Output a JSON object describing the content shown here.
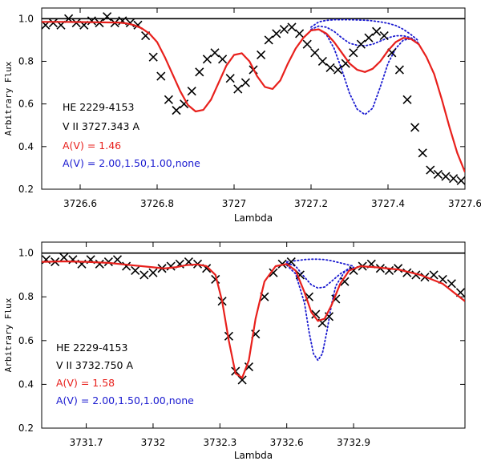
{
  "chart_data": [
    {
      "type": "line",
      "xlabel": "Lambda",
      "ylabel": "Arbitrary Flux",
      "xlim": [
        3726.5,
        3727.6
      ],
      "ylim": [
        0.2,
        1.05
      ],
      "xticks": [
        3726.6,
        3726.8,
        3727,
        3727.2,
        3727.4,
        3727.6
      ],
      "xtick_labels": [
        "3726.6",
        "3726.8",
        "3727",
        "3727.2",
        "3727.4",
        "3727.6"
      ],
      "yticks": [
        0.2,
        0.4,
        0.6,
        0.8,
        1.0
      ],
      "ytick_labels": [
        "0.2",
        "0.4",
        "0.6",
        "0.8",
        "1.0"
      ],
      "continuum": 1.0,
      "annotations": [
        {
          "text": "HE 2229-4153",
          "color": "#000000"
        },
        {
          "text": "V II 3727.343 A",
          "color": "#000000"
        },
        {
          "text": "A(V) = 1.46",
          "color": "#e8201c"
        },
        {
          "text": "A(V) = 2.00,1.50,1.00,none",
          "color": "#1a1ad0"
        }
      ],
      "observed": {
        "x": [
          3726.51,
          3726.53,
          3726.55,
          3726.57,
          3726.59,
          3726.61,
          3726.63,
          3726.65,
          3726.67,
          3726.69,
          3726.71,
          3726.73,
          3726.75,
          3726.77,
          3726.79,
          3726.81,
          3726.83,
          3726.85,
          3726.87,
          3726.89,
          3726.91,
          3726.93,
          3726.95,
          3726.97,
          3726.99,
          3727.01,
          3727.03,
          3727.05,
          3727.07,
          3727.09,
          3727.11,
          3727.13,
          3727.15,
          3727.17,
          3727.19,
          3727.21,
          3727.23,
          3727.25,
          3727.27,
          3727.29,
          3727.31,
          3727.33,
          3727.35,
          3727.37,
          3727.39,
          3727.41,
          3727.43,
          3727.45,
          3727.47,
          3727.49,
          3727.51,
          3727.53,
          3727.55,
          3727.57,
          3727.59
        ],
        "y": [
          0.97,
          0.98,
          0.97,
          1.0,
          0.98,
          0.97,
          0.99,
          0.98,
          1.01,
          0.98,
          0.99,
          0.98,
          0.97,
          0.92,
          0.82,
          0.73,
          0.62,
          0.57,
          0.6,
          0.66,
          0.75,
          0.81,
          0.84,
          0.81,
          0.72,
          0.67,
          0.7,
          0.76,
          0.83,
          0.9,
          0.93,
          0.95,
          0.96,
          0.93,
          0.88,
          0.84,
          0.8,
          0.77,
          0.76,
          0.79,
          0.84,
          0.88,
          0.91,
          0.94,
          0.92,
          0.84,
          0.76,
          0.62,
          0.49,
          0.37,
          0.29,
          0.27,
          0.26,
          0.25,
          0.24
        ]
      },
      "fit": {
        "name": "A(V) = 1.46",
        "color": "#e8201c",
        "x": [
          3726.5,
          3726.55,
          3726.6,
          3726.65,
          3726.7,
          3726.72,
          3726.74,
          3726.76,
          3726.78,
          3726.8,
          3726.82,
          3726.84,
          3726.86,
          3726.88,
          3726.9,
          3726.92,
          3726.94,
          3726.96,
          3726.98,
          3727.0,
          3727.02,
          3727.04,
          3727.06,
          3727.08,
          3727.1,
          3727.12,
          3727.14,
          3727.16,
          3727.18,
          3727.2,
          3727.22,
          3727.24,
          3727.26,
          3727.28,
          3727.3,
          3727.32,
          3727.34,
          3727.36,
          3727.38,
          3727.4,
          3727.42,
          3727.44,
          3727.46,
          3727.48,
          3727.5,
          3727.52,
          3727.54,
          3727.56,
          3727.58,
          3727.6
        ],
        "y": [
          0.985,
          0.985,
          0.984,
          0.983,
          0.982,
          0.978,
          0.97,
          0.955,
          0.93,
          0.89,
          0.82,
          0.74,
          0.66,
          0.595,
          0.565,
          0.572,
          0.62,
          0.7,
          0.78,
          0.83,
          0.838,
          0.8,
          0.73,
          0.68,
          0.67,
          0.71,
          0.79,
          0.86,
          0.91,
          0.945,
          0.95,
          0.93,
          0.89,
          0.84,
          0.79,
          0.76,
          0.75,
          0.765,
          0.8,
          0.85,
          0.89,
          0.91,
          0.905,
          0.88,
          0.82,
          0.74,
          0.62,
          0.49,
          0.37,
          0.28
        ]
      },
      "models": [
        {
          "name": "A(V) = 2.00",
          "color": "#1a1ad0",
          "x": [
            3727.2,
            3727.22,
            3727.24,
            3727.26,
            3727.28,
            3727.3,
            3727.32,
            3727.34,
            3727.36,
            3727.38,
            3727.4,
            3727.42,
            3727.44,
            3727.46,
            3727.48
          ],
          "y": [
            0.945,
            0.95,
            0.925,
            0.86,
            0.76,
            0.65,
            0.575,
            0.55,
            0.58,
            0.68,
            0.79,
            0.86,
            0.9,
            0.905,
            0.88
          ]
        },
        {
          "name": "A(V) = 1.50",
          "color": "#1a1ad0",
          "x": [
            3727.2,
            3727.22,
            3727.24,
            3727.26,
            3727.28,
            3727.3,
            3727.32,
            3727.34,
            3727.36,
            3727.38,
            3727.4,
            3727.42,
            3727.44,
            3727.46,
            3727.48
          ],
          "y": [
            0.945,
            0.95,
            0.93,
            0.89,
            0.84,
            0.79,
            0.76,
            0.75,
            0.765,
            0.8,
            0.85,
            0.89,
            0.91,
            0.905,
            0.88
          ]
        },
        {
          "name": "A(V) = 1.00",
          "color": "#1a1ad0",
          "x": [
            3727.2,
            3727.22,
            3727.24,
            3727.26,
            3727.28,
            3727.3,
            3727.32,
            3727.34,
            3727.36,
            3727.38,
            3727.4,
            3727.42,
            3727.44,
            3727.46,
            3727.48
          ],
          "y": [
            0.95,
            0.965,
            0.96,
            0.94,
            0.91,
            0.885,
            0.875,
            0.873,
            0.88,
            0.895,
            0.91,
            0.92,
            0.92,
            0.91,
            0.885
          ]
        },
        {
          "name": "none",
          "color": "#1a1ad0",
          "x": [
            3727.2,
            3727.22,
            3727.24,
            3727.26,
            3727.28,
            3727.3,
            3727.32,
            3727.34,
            3727.36,
            3727.38,
            3727.4,
            3727.42,
            3727.44,
            3727.46,
            3727.48
          ],
          "y": [
            0.96,
            0.985,
            0.992,
            0.995,
            0.995,
            0.995,
            0.994,
            0.993,
            0.99,
            0.985,
            0.978,
            0.968,
            0.95,
            0.925,
            0.895
          ]
        }
      ]
    },
    {
      "type": "line",
      "xlabel": "Lambda",
      "ylabel": "Arbitrary Flux",
      "xlim": [
        3731.5,
        3733.4
      ],
      "ylim": [
        0.2,
        1.05
      ],
      "xticks": [
        3731.7,
        3732,
        3732.3,
        3732.6,
        3732.9
      ],
      "xtick_labels": [
        "3731.7",
        "3732",
        "3732.3",
        "3732.6",
        "3732.9"
      ],
      "yticks": [
        0.2,
        0.4,
        0.6,
        0.8,
        1.0
      ],
      "ytick_labels": [
        "0.2",
        "0.4",
        "0.6",
        "0.8",
        "1.0"
      ],
      "continuum": 1.0,
      "annotations": [
        {
          "text": "HE 2229-4153",
          "color": "#000000"
        },
        {
          "text": "V II 3732.750 A",
          "color": "#000000"
        },
        {
          "text": "A(V) = 1.58",
          "color": "#e8201c"
        },
        {
          "text": "A(V) = 2.00,1.50,1.00,none",
          "color": "#1a1ad0"
        }
      ],
      "observed": {
        "x": [
          3731.52,
          3731.56,
          3731.6,
          3731.64,
          3731.68,
          3731.72,
          3731.76,
          3731.8,
          3731.84,
          3731.88,
          3731.92,
          3731.96,
          3732.0,
          3732.04,
          3732.08,
          3732.12,
          3732.16,
          3732.2,
          3732.24,
          3732.28,
          3732.31,
          3732.34,
          3732.37,
          3732.4,
          3732.43,
          3732.46,
          3732.5,
          3732.54,
          3732.58,
          3732.62,
          3732.66,
          3732.7,
          3732.73,
          3732.76,
          3732.79,
          3732.82,
          3732.86,
          3732.9,
          3732.94,
          3732.98,
          3733.02,
          3733.06,
          3733.1,
          3733.14,
          3733.18,
          3733.22,
          3733.26,
          3733.3,
          3733.34,
          3733.38
        ],
        "y": [
          0.97,
          0.96,
          0.98,
          0.97,
          0.95,
          0.97,
          0.95,
          0.96,
          0.97,
          0.94,
          0.92,
          0.9,
          0.91,
          0.93,
          0.94,
          0.95,
          0.96,
          0.95,
          0.93,
          0.88,
          0.78,
          0.62,
          0.46,
          0.42,
          0.48,
          0.63,
          0.8,
          0.91,
          0.95,
          0.96,
          0.9,
          0.8,
          0.72,
          0.68,
          0.71,
          0.79,
          0.87,
          0.92,
          0.94,
          0.95,
          0.93,
          0.92,
          0.93,
          0.91,
          0.9,
          0.89,
          0.9,
          0.88,
          0.86,
          0.82
        ]
      },
      "fit": {
        "name": "A(V) = 1.58",
        "color": "#e8201c",
        "x": [
          3731.5,
          3731.6,
          3731.7,
          3731.8,
          3731.9,
          3732.0,
          3732.05,
          3732.1,
          3732.15,
          3732.2,
          3732.24,
          3732.28,
          3732.31,
          3732.34,
          3732.37,
          3732.4,
          3732.43,
          3732.46,
          3732.5,
          3732.55,
          3732.6,
          3732.64,
          3732.68,
          3732.71,
          3732.74,
          3732.77,
          3732.8,
          3732.84,
          3732.88,
          3732.93,
          3733.0,
          3733.1,
          3733.2,
          3733.3,
          3733.4
        ],
        "y": [
          0.96,
          0.962,
          0.96,
          0.955,
          0.945,
          0.935,
          0.93,
          0.935,
          0.945,
          0.948,
          0.94,
          0.9,
          0.78,
          0.6,
          0.45,
          0.43,
          0.51,
          0.7,
          0.87,
          0.94,
          0.95,
          0.92,
          0.82,
          0.73,
          0.69,
          0.7,
          0.76,
          0.86,
          0.92,
          0.94,
          0.935,
          0.925,
          0.9,
          0.86,
          0.78
        ]
      },
      "models": [
        {
          "name": "A(V) = 2.00",
          "color": "#1a1ad0",
          "x": [
            3732.6,
            3732.64,
            3732.68,
            3732.7,
            3732.72,
            3732.74,
            3732.76,
            3732.78,
            3732.8,
            3732.82,
            3732.86,
            3732.9
          ],
          "y": [
            0.945,
            0.905,
            0.77,
            0.64,
            0.54,
            0.51,
            0.54,
            0.64,
            0.76,
            0.85,
            0.915,
            0.935
          ]
        },
        {
          "name": "A(V) = 1.50",
          "color": "#1a1ad0",
          "x": [
            3732.6,
            3732.64,
            3732.68,
            3732.71,
            3732.74,
            3732.77,
            3732.8,
            3732.84,
            3732.88,
            3732.9
          ],
          "y": [
            0.95,
            0.92,
            0.82,
            0.73,
            0.69,
            0.7,
            0.76,
            0.86,
            0.92,
            0.935
          ]
        },
        {
          "name": "A(V) = 1.00",
          "color": "#1a1ad0",
          "x": [
            3732.6,
            3732.64,
            3732.68,
            3732.71,
            3732.74,
            3732.77,
            3732.8,
            3732.84,
            3732.88,
            3732.9
          ],
          "y": [
            0.955,
            0.94,
            0.89,
            0.855,
            0.84,
            0.845,
            0.87,
            0.905,
            0.93,
            0.935
          ]
        },
        {
          "name": "none",
          "color": "#1a1ad0",
          "x": [
            3732.6,
            3732.64,
            3732.68,
            3732.71,
            3732.74,
            3732.77,
            3732.8,
            3732.84,
            3732.88,
            3732.9
          ],
          "y": [
            0.96,
            0.965,
            0.97,
            0.972,
            0.972,
            0.97,
            0.965,
            0.955,
            0.945,
            0.94
          ]
        }
      ]
    }
  ]
}
